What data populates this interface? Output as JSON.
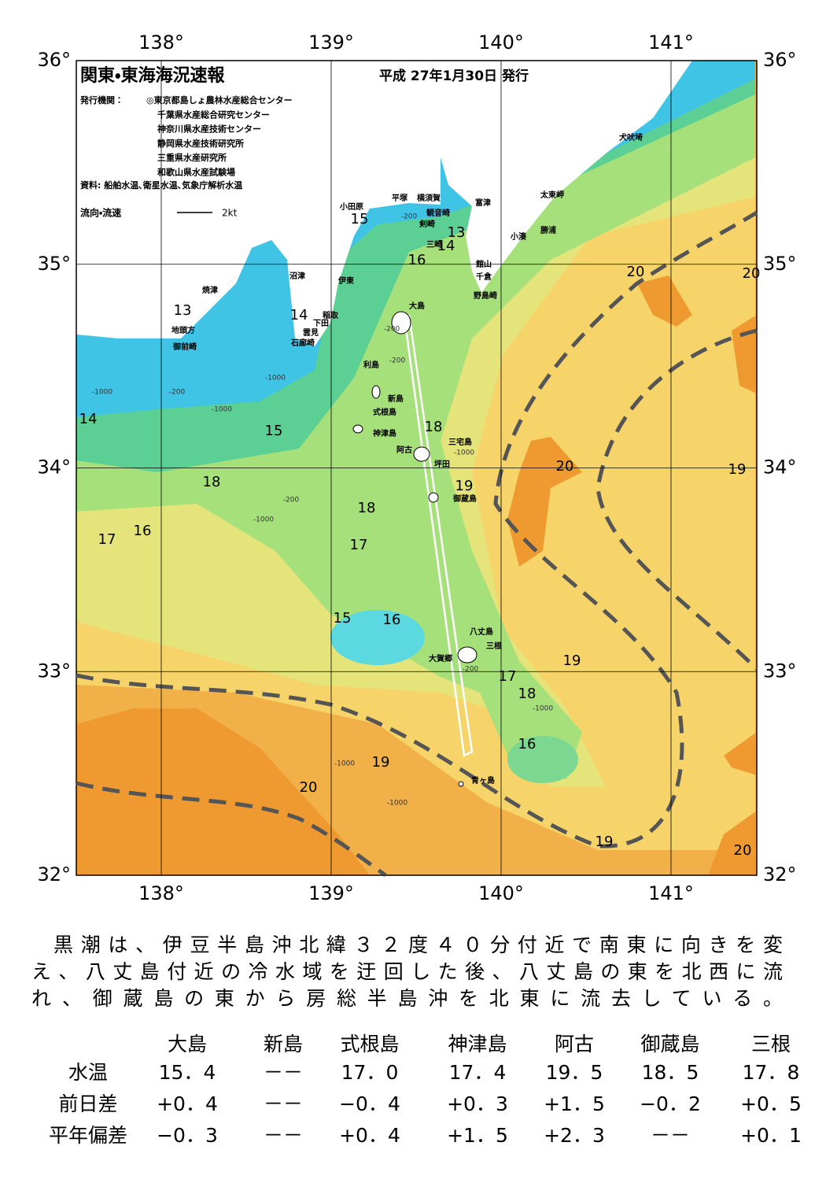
{
  "header": {
    "title": "関東・東海海況速報",
    "date": "平成 27年1月30日 発行",
    "publisher_label": "発行機関：",
    "publishers": [
      "◎東京都島しょ農林水産総合センター",
      "千葉県水産総合研究センター",
      "神奈川県水産技術センター",
      "静岡県水産技術研究所",
      "三重県水産研究所",
      "和歌山県水産試験場"
    ],
    "sources": "資料: 船舶水温､衛星水温､気象庁解析水温",
    "legend": "流向・流速",
    "legend_scale": "2kt"
  },
  "map": {
    "lon_ticks": [
      {
        "value": 138,
        "label": "138°"
      },
      {
        "value": 139,
        "label": "139°"
      },
      {
        "value": 140,
        "label": "140°"
      },
      {
        "value": 141,
        "label": "141°"
      }
    ],
    "lat_ticks": [
      {
        "value": 36,
        "label": "36°"
      },
      {
        "value": 35,
        "label": "35°"
      },
      {
        "value": 34,
        "label": "34°"
      },
      {
        "value": 33,
        "label": "33°"
      },
      {
        "value": 32,
        "label": "32°"
      }
    ],
    "place_names": [
      "小田原",
      "平塚",
      "横須賀",
      "観音崎",
      "富津",
      "剣崎",
      "三崎",
      "館山",
      "千倉",
      "野島崎",
      "沼津",
      "伊東",
      "焼津",
      "稲取",
      "下田",
      "雲見",
      "石廊崎",
      "地頭方",
      "御前崎",
      "大島",
      "利島",
      "新島",
      "式根島",
      "神津島",
      "三宅島",
      "阿古",
      "坪田",
      "御蔵島",
      "八丈島",
      "三根",
      "大賀郷",
      "青ヶ島",
      "太東岬",
      "勝浦",
      "小湊",
      "犬吠埼"
    ],
    "contour_labels": [
      "15",
      "13",
      "14",
      "16",
      "20",
      "20",
      "13",
      "14",
      "14",
      "15",
      "18",
      "20",
      "19",
      "18",
      "19",
      "18",
      "17",
      "16",
      "17",
      "15",
      "16",
      "19",
      "17",
      "18",
      "16",
      "19",
      "20",
      "19",
      "20"
    ],
    "depth_labels": [
      "-200",
      "-200",
      "-200",
      "-1000",
      "-1000",
      "-200",
      "-1000",
      "-200",
      "-1000",
      "-1000",
      "-1000",
      "-1000",
      "-200",
      "-1000"
    ]
  },
  "summary": [
    "黒潮は、伊豆半島沖北緯３２度４０分付近で南東に向きを変",
    "え、八丈島付近の冷水域を迂回した後、八丈島の東を北西に流",
    "れ、御蔵島の東から房総半島沖を北東に流去している。"
  ],
  "table": {
    "columns": [
      "大島",
      "新島",
      "式根島",
      "神津島",
      "阿古",
      "御蔵島",
      "三根"
    ],
    "rows": [
      {
        "label": "水温",
        "values": [
          "15．4",
          "－－",
          "17．0",
          "17．4",
          "19．5",
          "18．5",
          "17．8"
        ]
      },
      {
        "label": "前日差",
        "values": [
          "+0．4",
          "－－",
          "−0．4",
          "+0．3",
          "+1．5",
          "−0．2",
          "+0．5"
        ]
      },
      {
        "label": "平年偏差",
        "values": [
          "−0．3",
          "－－",
          "+0．4",
          "+1．5",
          "+2．3",
          "－－",
          "+0．1"
        ]
      }
    ]
  }
}
